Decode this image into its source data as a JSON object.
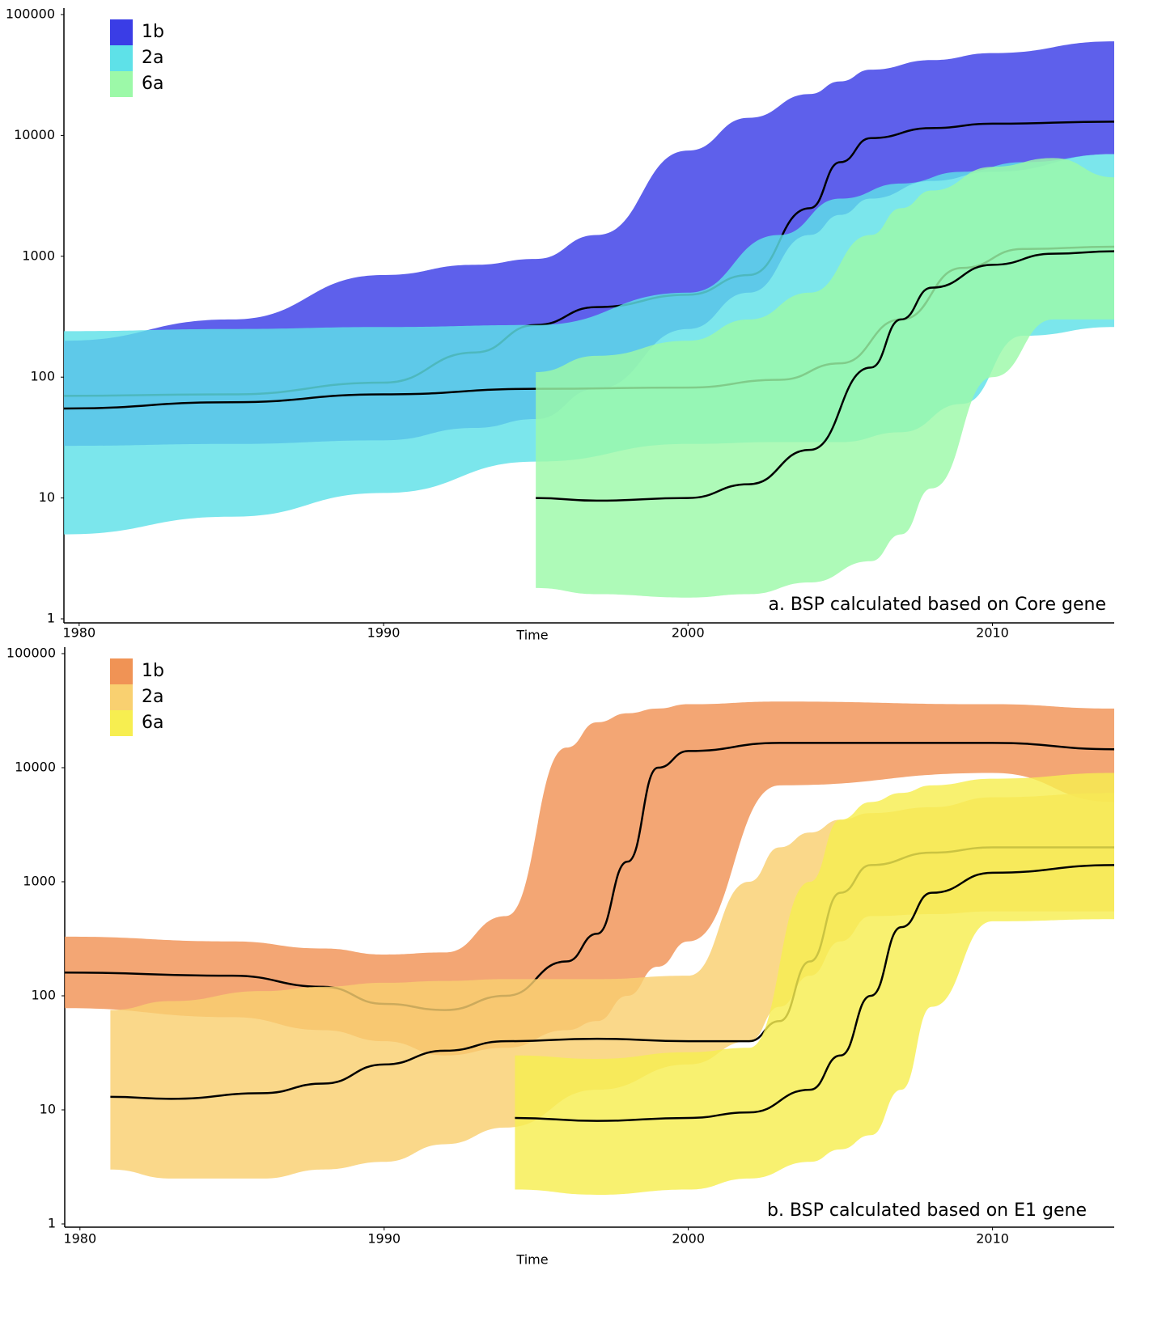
{
  "chart_data": [
    {
      "type": "area",
      "xlabel": "Time",
      "annotation": "a. BSP calculated based on Core gene",
      "xlim": [
        1979.5,
        2014
      ],
      "xticks": [
        1980,
        1990,
        2000,
        2010
      ],
      "ylim": [
        1,
        100000
      ],
      "yticks": [
        1,
        10,
        100,
        1000,
        10000,
        100000
      ],
      "log_y": true,
      "legend": "upper left",
      "series": [
        {
          "name": "1b",
          "color": "#3a3de6",
          "x": [
            1979.5,
            1985,
            1990,
            1993,
            1995,
            1997,
            2000,
            2002,
            2004,
            2005,
            2006,
            2008,
            2010,
            2014
          ],
          "values": [
            70,
            72,
            90,
            160,
            270,
            380,
            480,
            700,
            2500,
            6000,
            9500,
            11500,
            12500,
            13000
          ],
          "upper": [
            200,
            300,
            700,
            850,
            950,
            1500,
            7500,
            14000,
            22000,
            28000,
            35000,
            42000,
            48000,
            60000
          ],
          "lower": [
            27,
            28,
            30,
            38,
            45,
            80,
            250,
            500,
            1500,
            2200,
            3000,
            4200,
            5000,
            7000
          ]
        },
        {
          "name": "2a",
          "color": "#5ee1e8",
          "x": [
            1979.5,
            1985,
            1990,
            1995,
            2000,
            2003,
            2005,
            2007,
            2009,
            2011,
            2014
          ],
          "values": [
            55,
            62,
            72,
            80,
            82,
            95,
            130,
            300,
            800,
            1150,
            1200
          ],
          "upper": [
            240,
            250,
            260,
            270,
            500,
            1500,
            3000,
            4000,
            5000,
            6000,
            7000
          ],
          "lower": [
            5,
            7,
            11,
            20,
            28,
            29,
            29,
            35,
            60,
            220,
            260
          ]
        },
        {
          "name": "6a",
          "color": "#9cf9a8",
          "x": [
            1995,
            1997,
            2000,
            2002,
            2004,
            2006,
            2007,
            2008,
            2010,
            2012,
            2014
          ],
          "values": [
            10,
            9.5,
            10,
            13,
            25,
            120,
            300,
            550,
            850,
            1050,
            1100
          ],
          "upper": [
            110,
            150,
            200,
            300,
            500,
            1500,
            2500,
            3500,
            5500,
            6500,
            4500
          ],
          "lower": [
            1.8,
            1.6,
            1.5,
            1.6,
            2,
            3,
            5,
            12,
            100,
            300,
            300
          ]
        }
      ]
    },
    {
      "type": "area",
      "xlabel": "Time",
      "annotation": "b. BSP calculated based on E1 gene",
      "xlim": [
        1979.5,
        2014
      ],
      "xticks": [
        1980,
        1990,
        2000,
        2010
      ],
      "ylim": [
        1,
        100000
      ],
      "yticks": [
        1,
        10,
        100,
        1000,
        10000,
        100000
      ],
      "log_y": true,
      "legend": "upper left",
      "series": [
        {
          "name": "1b",
          "color": "#f09355",
          "x": [
            1979.5,
            1985,
            1988,
            1990,
            1992,
            1994,
            1996,
            1997,
            1998,
            1999,
            2000,
            2003,
            2010,
            2014
          ],
          "values": [
            160,
            150,
            120,
            85,
            75,
            100,
            200,
            350,
            1500,
            10000,
            14000,
            16500,
            16500,
            14500
          ],
          "upper": [
            330,
            300,
            260,
            230,
            240,
            500,
            15000,
            25000,
            30000,
            33000,
            36000,
            38000,
            36000,
            33000
          ],
          "lower": [
            78,
            65,
            50,
            40,
            30,
            35,
            50,
            60,
            100,
            180,
            300,
            7000,
            9000,
            5000
          ]
        },
        {
          "name": "2a",
          "color": "#f9d070",
          "x": [
            1981,
            1983,
            1986,
            1988,
            1990,
            1992,
            1994,
            1997,
            2000,
            2002,
            2003,
            2004,
            2005,
            2006,
            2008,
            2010,
            2014
          ],
          "values": [
            13,
            12.5,
            14,
            17,
            25,
            33,
            40,
            42,
            40,
            40,
            60,
            200,
            800,
            1400,
            1800,
            2000,
            2000
          ],
          "upper": [
            75,
            90,
            110,
            120,
            130,
            135,
            140,
            140,
            150,
            1000,
            2000,
            2700,
            3500,
            4000,
            4500,
            5500,
            6000
          ],
          "lower": [
            3,
            2.5,
            2.5,
            3,
            3.5,
            5,
            7,
            15,
            25,
            40,
            80,
            150,
            300,
            500,
            520,
            550,
            550
          ]
        },
        {
          "name": "6a",
          "color": "#f7ee50",
          "x": [
            1994.3,
            1997,
            2000,
            2002,
            2004,
            2005,
            2006,
            2007,
            2008,
            2010,
            2014
          ],
          "values": [
            8.5,
            8,
            8.5,
            9.5,
            15,
            30,
            100,
            400,
            800,
            1200,
            1400
          ],
          "upper": [
            30,
            28,
            32,
            35,
            1000,
            3500,
            5000,
            6000,
            7000,
            8000,
            9000
          ],
          "lower": [
            2,
            1.8,
            2,
            2.5,
            3.5,
            4.5,
            6,
            15,
            80,
            450,
            470
          ]
        }
      ]
    }
  ]
}
